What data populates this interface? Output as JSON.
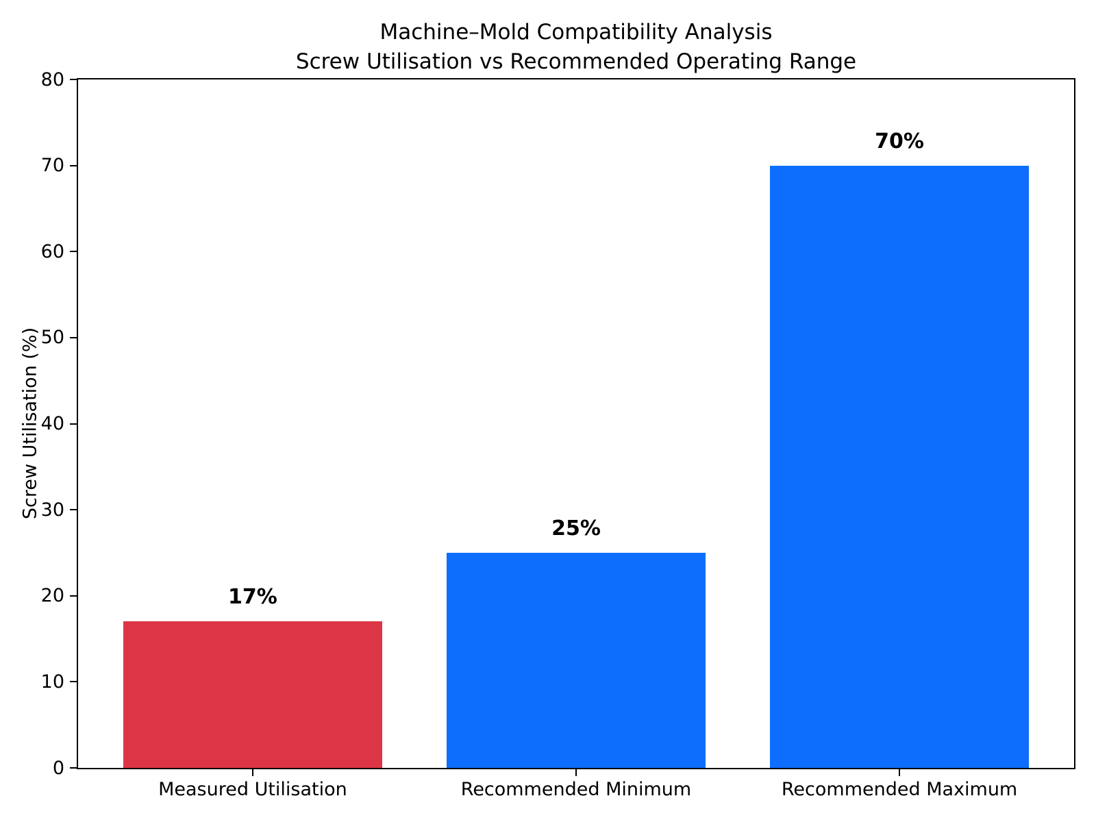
{
  "chart_data": {
    "type": "bar",
    "title": "Machine–Mold Compatibility Analysis",
    "subtitle": "Screw Utilisation vs Recommended Operating Range",
    "categories": [
      "Measured Utilisation",
      "Recommended Minimum",
      "Recommended Maximum"
    ],
    "values": [
      17,
      25,
      70
    ],
    "bar_labels": [
      "17%",
      "25%",
      "70%"
    ],
    "bar_colors": [
      "#dc3545",
      "#0d6efd",
      "#0d6efd"
    ],
    "xlabel": "",
    "ylabel": "Screw Utilisation (%)",
    "ylim": [
      0,
      80
    ],
    "yticks": [
      0,
      10,
      20,
      30,
      40,
      50,
      60,
      70,
      80
    ],
    "grid": false,
    "legend_position": "none"
  }
}
